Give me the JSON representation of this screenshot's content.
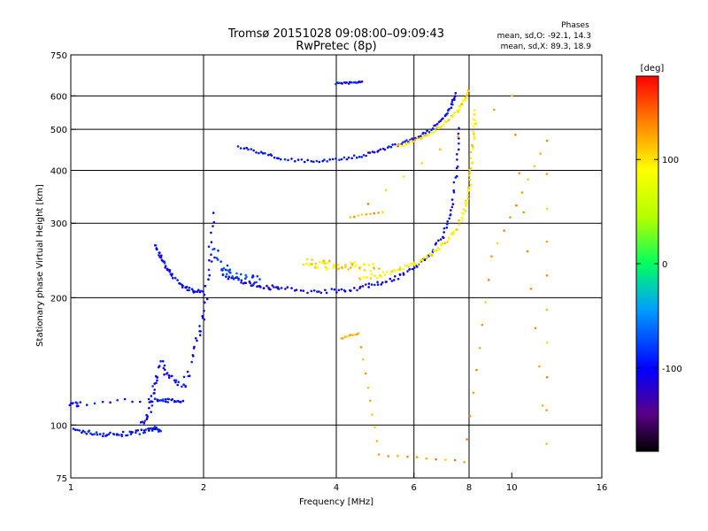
{
  "header": {
    "title": "Tromsø 20151028 09:08:00–09:09:43",
    "subtitle": "RwPretec (8p)"
  },
  "stats": {
    "heading": "Phases",
    "line1": "mean, sd,O: -92.1, 14.3",
    "line2": "mean, sd,X: 89.3, 18.9"
  },
  "colorbar": {
    "unit": "[deg]",
    "ticks": [
      {
        "value": 100,
        "label": "100"
      },
      {
        "value": 0,
        "label": "0"
      },
      {
        "value": -100,
        "label": "-100"
      }
    ],
    "range": [
      -180,
      180
    ]
  },
  "chart_data": {
    "type": "scatter",
    "xlabel": "Frequency [MHz]",
    "ylabel": "Stationary phase Virtual Height [km]",
    "xscale": "log",
    "yscale": "log",
    "xlim": [
      1,
      16
    ],
    "ylim": [
      75,
      750
    ],
    "xticks": [
      1,
      2,
      4,
      6,
      8,
      10,
      16
    ],
    "yticks": [
      75,
      100,
      200,
      300,
      400,
      500,
      600,
      750
    ],
    "xgrid": [
      2,
      4,
      6,
      8
    ],
    "ygrid": [
      100,
      200,
      300,
      400,
      500,
      600
    ],
    "grid": true,
    "series": [
      {
        "key": "e_layer",
        "phase": -95,
        "spread": 0.012,
        "points": [
          [
            1.02,
            97
          ],
          [
            1.1,
            96
          ],
          [
            1.2,
            95
          ],
          [
            1.3,
            95
          ],
          [
            1.4,
            96
          ],
          [
            1.5,
            97
          ],
          [
            1.55,
            98
          ],
          [
            1.6,
            97
          ]
        ]
      },
      {
        "key": "low_trace",
        "phase": -100,
        "spread": 0.012,
        "points": [
          [
            1.0,
            112
          ],
          [
            1.05,
            112
          ],
          [
            1.5,
            115
          ],
          [
            1.6,
            114
          ],
          [
            1.7,
            114
          ],
          [
            1.8,
            115
          ]
        ]
      },
      {
        "key": "f1_rise",
        "phase": -100,
        "spread": 0.025,
        "points": [
          [
            1.45,
            100
          ],
          [
            1.5,
            108
          ],
          [
            1.55,
            125
          ],
          [
            1.6,
            140
          ],
          [
            1.7,
            128
          ],
          [
            1.8,
            122
          ],
          [
            1.9,
            150
          ],
          [
            2.0,
            180
          ],
          [
            2.05,
            230
          ],
          [
            2.1,
            330
          ]
        ]
      },
      {
        "key": "cusp_left",
        "phase": -100,
        "spread": 0.01,
        "points": [
          [
            1.55,
            265
          ],
          [
            1.6,
            250
          ],
          [
            1.65,
            235
          ],
          [
            1.7,
            225
          ],
          [
            1.8,
            212
          ],
          [
            1.9,
            208
          ],
          [
            2.0,
            207
          ]
        ]
      },
      {
        "key": "o_trace_f2",
        "phase": -105,
        "spread": 0.012,
        "points": [
          [
            2.2,
            225
          ],
          [
            2.4,
            220
          ],
          [
            2.6,
            215
          ],
          [
            2.8,
            212
          ],
          [
            3.0,
            210
          ],
          [
            3.5,
            207
          ],
          [
            4.0,
            208
          ],
          [
            4.5,
            211
          ],
          [
            5.0,
            216
          ],
          [
            5.5,
            224
          ],
          [
            6.0,
            235
          ],
          [
            6.5,
            252
          ],
          [
            7.0,
            280
          ],
          [
            7.3,
            320
          ],
          [
            7.5,
            400
          ],
          [
            7.6,
            520
          ]
        ]
      },
      {
        "key": "x_trace_f2",
        "phase": 95,
        "spread": 0.012,
        "points": [
          [
            4.5,
            222
          ],
          [
            5.0,
            226
          ],
          [
            5.5,
            232
          ],
          [
            6.0,
            240
          ],
          [
            6.5,
            252
          ],
          [
            7.0,
            268
          ],
          [
            7.5,
            290
          ],
          [
            7.8,
            320
          ],
          [
            8.0,
            360
          ],
          [
            8.1,
            420
          ],
          [
            8.2,
            500
          ],
          [
            8.25,
            560
          ]
        ]
      },
      {
        "key": "x_cloud",
        "phase": 100,
        "spread": 0.025,
        "points": [
          [
            3.4,
            245
          ],
          [
            3.6,
            240
          ],
          [
            3.8,
            238
          ],
          [
            4.0,
            240
          ],
          [
            4.3,
            238
          ],
          [
            4.6,
            236
          ],
          [
            5.0,
            234
          ]
        ]
      },
      {
        "key": "upper_o_echo",
        "phase": -100,
        "spread": 0.008,
        "points": [
          [
            2.4,
            455
          ],
          [
            2.7,
            440
          ],
          [
            3.0,
            425
          ],
          [
            3.5,
            420
          ],
          [
            4.0,
            425
          ],
          [
            4.5,
            432
          ],
          [
            5.0,
            445
          ],
          [
            5.5,
            460
          ],
          [
            6.0,
            475
          ],
          [
            6.5,
            495
          ],
          [
            7.0,
            530
          ],
          [
            7.3,
            570
          ],
          [
            7.5,
            610
          ]
        ]
      },
      {
        "key": "upper_x_echo",
        "phase": 100,
        "spread": 0.008,
        "points": [
          [
            5.5,
            455
          ],
          [
            6.0,
            470
          ],
          [
            6.5,
            488
          ],
          [
            7.0,
            515
          ],
          [
            7.5,
            550
          ],
          [
            7.8,
            585
          ],
          [
            8.0,
            620
          ]
        ]
      },
      {
        "key": "top_segment",
        "phase": -100,
        "spread": 0.006,
        "points": [
          [
            4.0,
            640
          ],
          [
            4.3,
            645
          ],
          [
            4.6,
            650
          ]
        ]
      },
      {
        "key": "left_mid_scatter",
        "phase": -80,
        "spread": 0.03,
        "points": [
          [
            2.1,
            260
          ],
          [
            2.2,
            240
          ],
          [
            2.3,
            230
          ],
          [
            2.5,
            225
          ],
          [
            2.7,
            220
          ]
        ]
      },
      {
        "key": "isolated",
        "phase": 120,
        "spread": 0.004,
        "points": [
          [
            4.1,
            160
          ],
          [
            4.5,
            165
          ],
          [
            5.0,
            85
          ],
          [
            7.8,
            82
          ],
          [
            9.0,
            250
          ],
          [
            12.0,
            470
          ],
          [
            12.0,
            90
          ],
          [
            10.0,
            600
          ],
          [
            4.3,
            310
          ],
          [
            5.2,
            320
          ]
        ]
      }
    ]
  }
}
